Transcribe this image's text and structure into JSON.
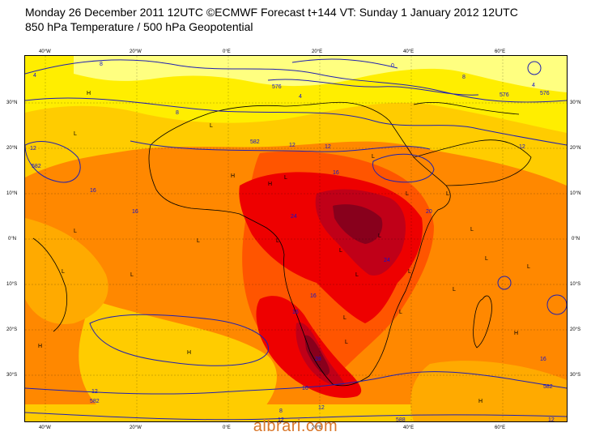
{
  "header": {
    "line1": "Monday 26 December 2011 12UTC ©ECMWF Forecast t+144 VT: Sunday 1 January 2012 12UTC",
    "line2": "850 hPa Temperature / 500 hPa Geopotential"
  },
  "axes": {
    "top": [
      "40°W",
      "20°W",
      "0°E",
      "20°E",
      "40°E",
      "60°E"
    ],
    "bottom": [
      "40°W",
      "20°W",
      "0°E",
      "20°E",
      "40°E",
      "60°E"
    ],
    "left": [
      "30°N",
      "20°N",
      "10°N",
      "0°N",
      "10°S",
      "20°S",
      "30°S"
    ],
    "right": [
      "30°N",
      "20°N",
      "10°N",
      "0°N",
      "10°S",
      "20°S",
      "30°S"
    ]
  },
  "contour_labels": [
    "8",
    "4",
    "0",
    "576",
    "8",
    "12",
    "582",
    "16",
    "12",
    "582",
    "4",
    "16",
    "12",
    "16",
    "20",
    "24",
    "24",
    "16",
    "16",
    "28",
    "16",
    "12",
    "12",
    "582",
    "8",
    "12",
    "588",
    "576",
    "12",
    "16",
    "582",
    "12",
    "4",
    "8",
    "576"
  ],
  "pressure_centres": [
    "H",
    "L",
    "L",
    "H",
    "L",
    "L",
    "L",
    "L",
    "H",
    "L",
    "L",
    "L",
    "L",
    "L",
    "L",
    "L",
    "L",
    "H",
    "L",
    "L",
    "L",
    "L",
    "L",
    "L",
    "L",
    "H",
    "H",
    "H",
    "L"
  ],
  "colors": {
    "pale_yellow": "#ffff80",
    "yellow": "#ffee00",
    "gold": "#ffcc00",
    "light_orange": "#ffaa00",
    "orange": "#ff8800",
    "dark_orange": "#ff5500",
    "red": "#ee0000",
    "crimson": "#c00018",
    "dark_red": "#88001c",
    "geopotential_line": "#2020b0",
    "coastline": "#000000"
  },
  "watermark": "albrari.com"
}
